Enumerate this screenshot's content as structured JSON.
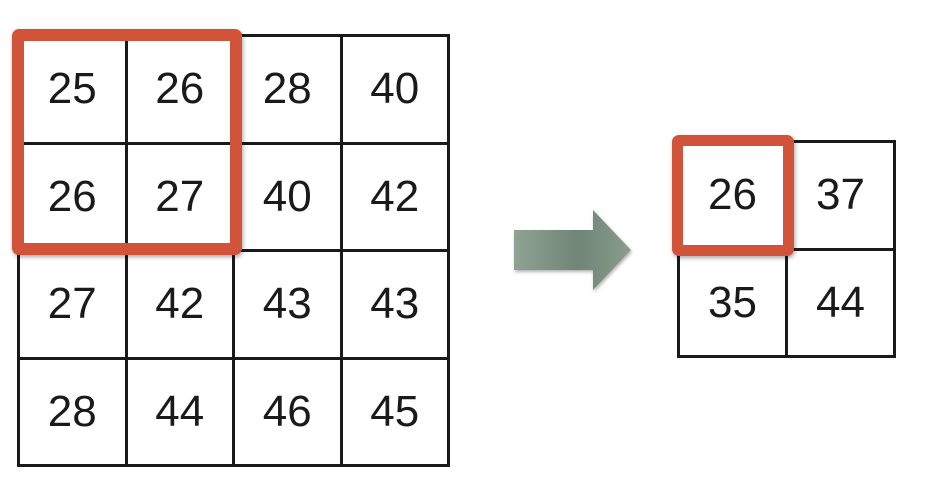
{
  "colors": {
    "grid_line": "#1a1a1a",
    "highlight": "#d0533a",
    "arrow": "#7f9484"
  },
  "input_grid": {
    "rows": [
      [
        "25",
        "26",
        "28",
        "40"
      ],
      [
        "26",
        "27",
        "40",
        "42"
      ],
      [
        "27",
        "42",
        "43",
        "43"
      ],
      [
        "28",
        "44",
        "46",
        "45"
      ]
    ]
  },
  "output_grid": {
    "rows": [
      [
        "26",
        "37"
      ],
      [
        "35",
        "44"
      ]
    ]
  },
  "icons": {
    "arrow": "right-arrow-icon"
  }
}
